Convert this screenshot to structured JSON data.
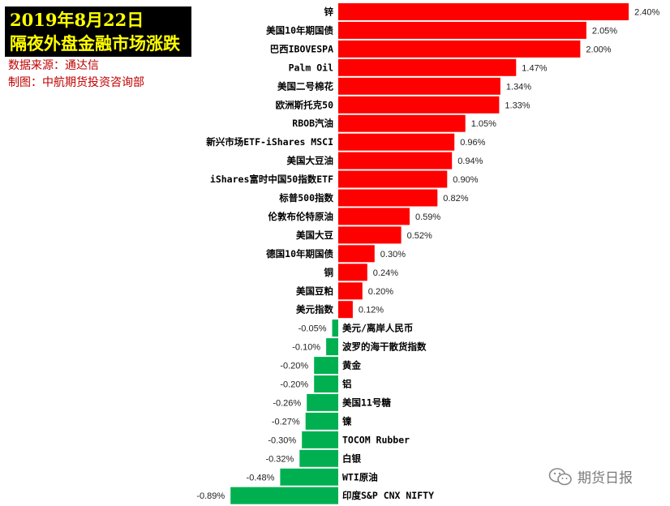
{
  "header": {
    "title_line1": "2019年8月22日",
    "title_line2": "隔夜外盘金融市场涨跌",
    "source": "数据来源：通达信",
    "author": "制图：中航期货投资咨询部"
  },
  "watermark": {
    "text": "期货日报",
    "icon": "wechat-icon"
  },
  "colors": {
    "positive": "#ff0000",
    "negative": "#00b050",
    "title_bg": "#000000",
    "title_text": "#ffff00",
    "credit_text": "#c00000"
  },
  "chart_data": {
    "type": "bar",
    "orientation": "horizontal",
    "categories": [
      "锌",
      "美国10年期国债",
      "巴西IBOVESPA",
      "Palm Oil",
      "美国二号棉花",
      "欧洲斯托克50",
      "RBOB汽油",
      "新兴市场ETF-iShares MSCI",
      "美国大豆油",
      "iShares富时中国50指数ETF",
      "标普500指数",
      "伦敦布伦特原油",
      "美国大豆",
      "德国10年期国债",
      "铜",
      "美国豆粕",
      "美元指数",
      "美元/离岸人民币",
      "波罗的海干散货指数",
      "黄金",
      "铝",
      "美国11号糖",
      "镍",
      "TOCOM Rubber",
      "白银",
      "WTI原油",
      "印度S&P CNX NIFTY"
    ],
    "values": [
      2.4,
      2.05,
      2.0,
      1.47,
      1.34,
      1.33,
      1.05,
      0.96,
      0.94,
      0.9,
      0.82,
      0.59,
      0.52,
      0.3,
      0.24,
      0.2,
      0.12,
      -0.05,
      -0.1,
      -0.2,
      -0.2,
      -0.26,
      -0.27,
      -0.3,
      -0.32,
      -0.48,
      -0.89
    ],
    "value_labels": [
      "2.40%",
      "2.05%",
      "2.00%",
      "1.47%",
      "1.34%",
      "1.33%",
      "1.05%",
      "0.96%",
      "0.94%",
      "0.90%",
      "0.82%",
      "0.59%",
      "0.52%",
      "0.30%",
      "0.24%",
      "0.20%",
      "0.12%",
      "-0.05%",
      "-0.10%",
      "-0.20%",
      "-0.20%",
      "-0.26%",
      "-0.27%",
      "-0.30%",
      "-0.32%",
      "-0.48%",
      "-0.89%"
    ],
    "unit": "%",
    "xlim": [
      -0.89,
      2.4
    ],
    "grid": false,
    "legend": "none"
  }
}
